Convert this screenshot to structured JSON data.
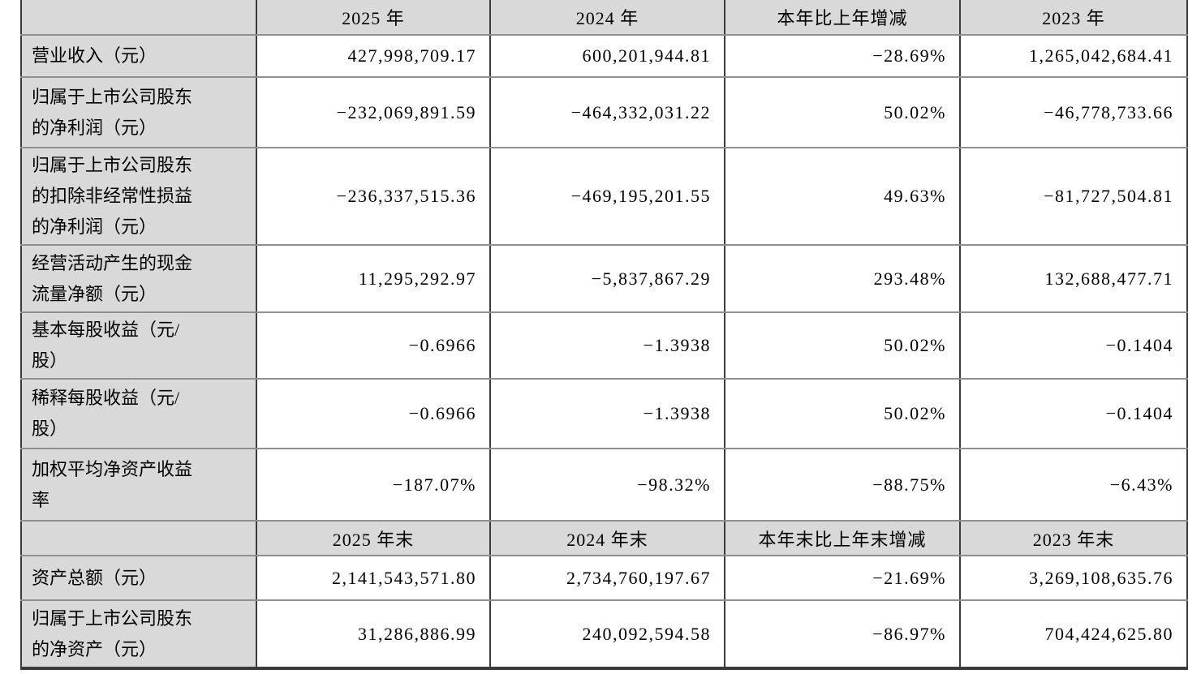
{
  "table": {
    "header1": [
      "2025 年",
      "2024 年",
      "本年比上年增减",
      "2023 年"
    ],
    "header2": [
      "2025 年末",
      "2024 年末",
      "本年末比上年末增减",
      "2023 年末"
    ],
    "rows": [
      {
        "label": "营业收入（元）",
        "values": [
          "427,998,709.17",
          "600,201,944.81",
          "−28.69%",
          "1,265,042,684.41"
        ]
      },
      {
        "label": "归属于上市公司股东\n的净利润（元）",
        "values": [
          "−232,069,891.59",
          "−464,332,031.22",
          "50.02%",
          "−46,778,733.66"
        ]
      },
      {
        "label": "归属于上市公司股东\n的扣除非经常性损益\n的净利润（元）",
        "values": [
          "−236,337,515.36",
          "−469,195,201.55",
          "49.63%",
          "−81,727,504.81"
        ]
      },
      {
        "label": "经营活动产生的现金\n流量净额（元）",
        "values": [
          "11,295,292.97",
          "−5,837,867.29",
          "293.48%",
          "132,688,477.71"
        ]
      },
      {
        "label": "基本每股收益（元/\n股）",
        "values": [
          "−0.6966",
          "−1.3938",
          "50.02%",
          "−0.1404"
        ]
      },
      {
        "label": "稀释每股收益（元/\n股）",
        "values": [
          "−0.6966",
          "−1.3938",
          "50.02%",
          "−0.1404"
        ]
      },
      {
        "label": "加权平均净资产收益\n率",
        "values": [
          "−187.07%",
          "−98.32%",
          "−88.75%",
          "−6.43%"
        ]
      }
    ],
    "rows2": [
      {
        "label": "资产总额（元）",
        "values": [
          "2,141,543,571.80",
          "2,734,760,197.67",
          "−21.69%",
          "3,269,108,635.76"
        ]
      },
      {
        "label": "归属于上市公司股东\n的净资产（元）",
        "values": [
          "31,286,886.99",
          "240,092,594.58",
          "−86.97%",
          "704,424,625.80"
        ]
      }
    ]
  }
}
